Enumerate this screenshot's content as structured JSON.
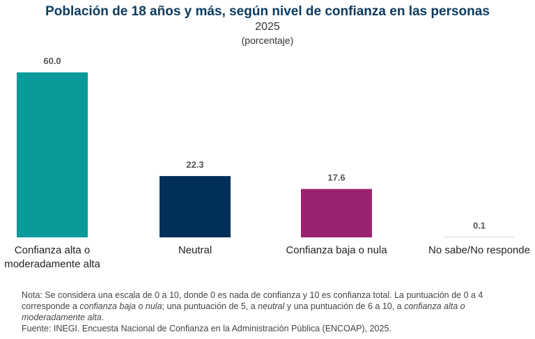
{
  "chart_data": {
    "type": "bar",
    "title": "Población de 18 años y más, según nivel de confianza en las personas",
    "subtitle": "2025",
    "unit_label": "(porcentaje)",
    "categories": [
      "Confianza alta o moderadamente alta",
      "Neutral",
      "Confianza baja o nula",
      "No sabe/No responde"
    ],
    "values": [
      60.0,
      22.3,
      17.6,
      0.1
    ],
    "data_labels": [
      "60.0",
      "22.3",
      "17.6",
      "0.1"
    ],
    "colors": [
      "#0a9a9a",
      "#003057",
      "#9b2270",
      "#9b9b9b"
    ],
    "ylim": [
      0,
      60
    ],
    "grid": false,
    "legend": "none"
  },
  "note": {
    "prefix": "Nota: Se considera una escala de 0 a 10, donde 0 es nada de confianza y 10 es confianza total. La puntuación de 0 a 4 corresponde a ",
    "italic1": "confianza baja o nula",
    "mid1": "; una puntuación de 5, a ",
    "italic2": "neutral",
    "mid2": " y una puntuación de 6 a 10, a ",
    "italic3": "confianza alta o moderadamente alta",
    "end": "."
  },
  "source": {
    "prefix": "Fuente: ",
    "org": "INEGI",
    "text": ". Encuesta Nacional de Confianza en la Administración Pública (",
    "abbr": "ENCOAP",
    "end": "), 2025."
  }
}
